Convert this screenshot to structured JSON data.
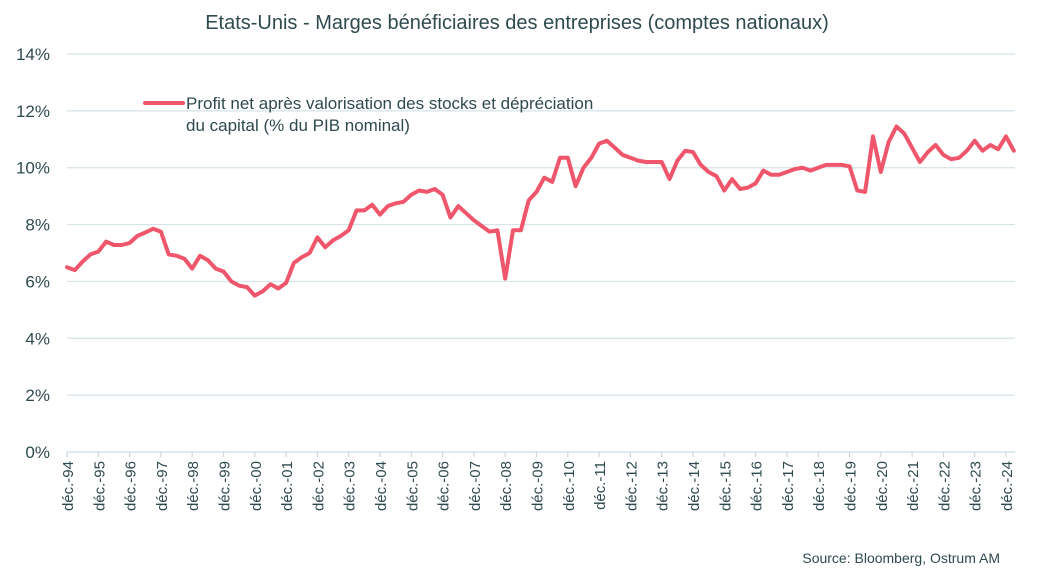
{
  "chart_data": {
    "type": "line",
    "title": "Etats-Unis - Marges bénéficiaires des entreprises (comptes nationaux)",
    "xlabel": "",
    "ylabel": "",
    "ylim": [
      0,
      14
    ],
    "yticks": [
      "0%",
      "2%",
      "4%",
      "6%",
      "8%",
      "10%",
      "12%",
      "14%"
    ],
    "ytick_values": [
      0,
      2,
      4,
      6,
      8,
      10,
      12,
      14
    ],
    "xticks": [
      "déc.-94",
      "déc.-95",
      "déc.-96",
      "déc.-97",
      "déc.-98",
      "déc.-99",
      "déc.-00",
      "déc.-01",
      "déc.-02",
      "déc.-03",
      "déc.-04",
      "déc.-05",
      "déc.-06",
      "déc.-07",
      "déc.-08",
      "déc.-09",
      "déc.-10",
      "déc.-11",
      "déc.-12",
      "déc.-13",
      "déc.-14",
      "déc.-15",
      "déc.-16",
      "déc.-17",
      "déc.-18",
      "déc.-19",
      "déc.-20",
      "déc.-21",
      "déc.-22",
      "déc.-23",
      "déc.-24"
    ],
    "x_frequency": "quarterly",
    "x_start": "déc.-94",
    "grid": true,
    "legend_position": "top-left",
    "source": "Source: Bloomberg,  Ostrum  AM",
    "series": [
      {
        "name": "Profit net après valorisation des stocks et dépréciation du capital (% du PIB nominal)",
        "legend_lines": [
          "Profit net après valorisation des stocks et dépréciation",
          "du capital (% du PIB nominal)"
        ],
        "color": "#f0566b",
        "values": [
          6.5,
          6.4,
          6.7,
          6.95,
          7.05,
          7.4,
          7.28,
          7.28,
          7.35,
          7.6,
          7.72,
          7.85,
          7.75,
          6.95,
          6.9,
          6.8,
          6.45,
          6.9,
          6.75,
          6.45,
          6.35,
          6.0,
          5.85,
          5.8,
          5.5,
          5.65,
          5.9,
          5.75,
          5.95,
          6.65,
          6.85,
          7.0,
          7.55,
          7.2,
          7.45,
          7.6,
          7.8,
          8.5,
          8.5,
          8.7,
          8.35,
          8.65,
          8.75,
          8.8,
          9.05,
          9.2,
          9.15,
          9.25,
          9.05,
          8.25,
          8.65,
          8.4,
          8.15,
          7.95,
          7.75,
          7.8,
          6.1,
          7.8,
          7.8,
          8.85,
          9.15,
          9.65,
          9.5,
          10.35,
          10.35,
          9.35,
          10.0,
          10.35,
          10.85,
          10.95,
          10.7,
          10.45,
          10.35,
          10.25,
          10.2,
          10.2,
          10.2,
          9.6,
          10.25,
          10.6,
          10.55,
          10.1,
          9.85,
          9.7,
          9.2,
          9.6,
          9.25,
          9.3,
          9.45,
          9.9,
          9.75,
          9.75,
          9.85,
          9.95,
          10.0,
          9.9,
          10.0,
          10.1,
          10.1,
          10.1,
          10.05,
          9.2,
          9.15,
          11.1,
          9.85,
          10.9,
          11.45,
          11.2,
          10.7,
          10.2,
          10.55,
          10.8,
          10.45,
          10.3,
          10.35,
          10.6,
          10.95,
          10.6,
          10.8,
          10.65,
          11.1,
          10.6
        ]
      }
    ]
  }
}
